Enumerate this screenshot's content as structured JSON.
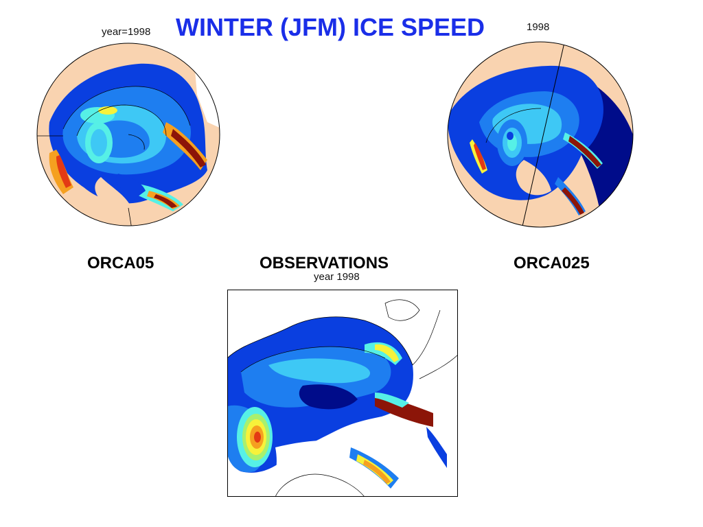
{
  "title": "WINTER (JFM) ICE SPEED",
  "panels": {
    "left": {
      "header": "year=1998",
      "caption": "ORCA05"
    },
    "right": {
      "header": "1998",
      "caption": "ORCA025"
    },
    "center": {
      "header": "year 1998",
      "caption": "OBSERVATIONS"
    }
  },
  "colors": {
    "land": "#f9d3b0",
    "ocean_frame": "#ffffff",
    "ice_dark": "#000c8a",
    "ice_blue": "#0a3fe0",
    "ice_mid": "#1e7ef0",
    "ice_light": "#3ec8f5",
    "ice_cyan": "#56f0e6",
    "ice_green": "#a8f06e",
    "ice_yellow": "#f7f23a",
    "ice_orange": "#f5a020",
    "ice_red": "#e33a14",
    "ice_maroon": "#8c1508"
  }
}
